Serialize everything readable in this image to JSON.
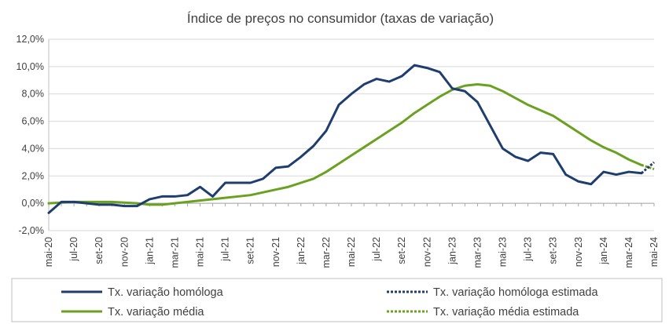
{
  "chart_data": {
    "type": "line",
    "title": "Índice de preços no consumidor  (taxas  de variação)",
    "xlabel": "",
    "ylabel": "",
    "ylim": [
      -2,
      12
    ],
    "y_ticks": [
      -2,
      0,
      2,
      4,
      6,
      8,
      10,
      12
    ],
    "y_tick_labels": [
      "-2,0%",
      "0,0%",
      "2,0%",
      "4,0%",
      "6,0%",
      "8,0%",
      "10,0%",
      "12,0%"
    ],
    "grid": "horizontal",
    "legend_position": "bottom",
    "x": [
      "mai-20",
      "jun-20",
      "jul-20",
      "ago-20",
      "set-20",
      "out-20",
      "nov-20",
      "dez-20",
      "jan-21",
      "fev-21",
      "mar-21",
      "abr-21",
      "mai-21",
      "jun-21",
      "jul-21",
      "ago-21",
      "set-21",
      "out-21",
      "nov-21",
      "dez-21",
      "jan-22",
      "fev-22",
      "mar-22",
      "abr-22",
      "mai-22",
      "jun-22",
      "jul-22",
      "ago-22",
      "set-22",
      "out-22",
      "nov-22",
      "dez-22",
      "jan-23",
      "fev-23",
      "mar-23",
      "abr-23",
      "mai-23",
      "jun-23",
      "jul-23",
      "ago-23",
      "set-23",
      "out-23",
      "nov-23",
      "dez-23",
      "jan-24",
      "fev-24",
      "mar-24",
      "abr-24",
      "mai-24"
    ],
    "x_tick_labels": [
      "mai-20",
      "jul-20",
      "set-20",
      "nov-20",
      "jan-21",
      "mar-21",
      "mai-21",
      "jul-21",
      "set-21",
      "nov-21",
      "jan-22",
      "mar-22",
      "mai-22",
      "jul-22",
      "set-22",
      "nov-22",
      "jan-23",
      "mar-23",
      "mai-23",
      "jul-23",
      "set-23",
      "nov-23",
      "jan-24",
      "mar-24",
      "mai-24"
    ],
    "series": [
      {
        "name": "Tx. variação homóloga",
        "color": "#1f3e6e",
        "style": "solid",
        "values": [
          -0.7,
          0.1,
          0.1,
          0.0,
          -0.1,
          -0.1,
          -0.2,
          -0.2,
          0.3,
          0.5,
          0.5,
          0.6,
          1.2,
          0.5,
          1.5,
          1.5,
          1.5,
          1.8,
          2.6,
          2.7,
          3.4,
          4.2,
          5.3,
          7.2,
          8.0,
          8.7,
          9.1,
          8.9,
          9.3,
          10.1,
          9.9,
          9.6,
          8.4,
          8.2,
          7.4,
          5.7,
          4.0,
          3.4,
          3.1,
          3.7,
          3.6,
          2.1,
          1.6,
          1.4,
          2.3,
          2.1,
          2.3,
          2.2,
          null
        ]
      },
      {
        "name": "Tx. variação homóloga estimada",
        "color": "#1f3e6e",
        "style": "dotted",
        "values": [
          null,
          null,
          null,
          null,
          null,
          null,
          null,
          null,
          null,
          null,
          null,
          null,
          null,
          null,
          null,
          null,
          null,
          null,
          null,
          null,
          null,
          null,
          null,
          null,
          null,
          null,
          null,
          null,
          null,
          null,
          null,
          null,
          null,
          null,
          null,
          null,
          null,
          null,
          null,
          null,
          null,
          null,
          null,
          null,
          null,
          null,
          null,
          2.2,
          3.0
        ]
      },
      {
        "name": "Tx. variação média",
        "color": "#6aa121",
        "style": "solid",
        "values": [
          0.0,
          0.05,
          0.1,
          0.1,
          0.1,
          0.1,
          0.05,
          0.0,
          -0.1,
          -0.1,
          0.0,
          0.1,
          0.2,
          0.3,
          0.4,
          0.5,
          0.6,
          0.8,
          1.0,
          1.2,
          1.5,
          1.8,
          2.3,
          2.9,
          3.5,
          4.1,
          4.7,
          5.3,
          5.9,
          6.6,
          7.2,
          7.8,
          8.3,
          8.6,
          8.7,
          8.6,
          8.2,
          7.7,
          7.2,
          6.8,
          6.4,
          5.8,
          5.2,
          4.6,
          4.1,
          3.7,
          3.2,
          2.8,
          null
        ]
      },
      {
        "name": "Tx. variação média  estimada",
        "color": "#6aa121",
        "style": "dotted",
        "values": [
          null,
          null,
          null,
          null,
          null,
          null,
          null,
          null,
          null,
          null,
          null,
          null,
          null,
          null,
          null,
          null,
          null,
          null,
          null,
          null,
          null,
          null,
          null,
          null,
          null,
          null,
          null,
          null,
          null,
          null,
          null,
          null,
          null,
          null,
          null,
          null,
          null,
          null,
          null,
          null,
          null,
          null,
          null,
          null,
          null,
          null,
          null,
          2.8,
          2.5
        ]
      }
    ]
  }
}
